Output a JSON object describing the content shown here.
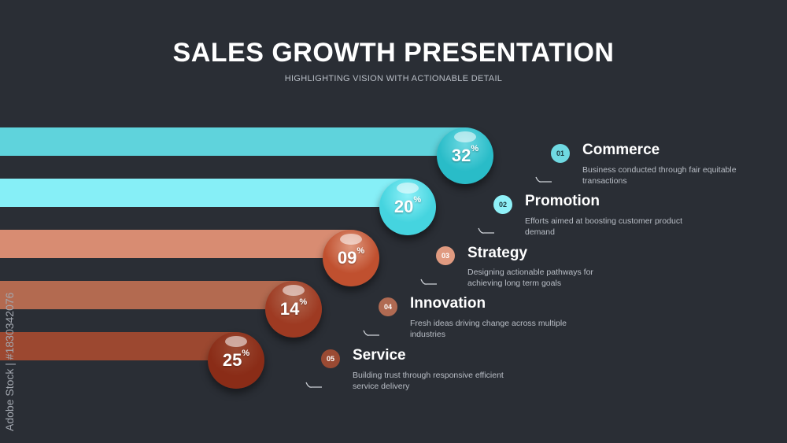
{
  "header": {
    "title": "SALES GROWTH PRESENTATION",
    "subtitle": "HIGHLIGHTING VISION WITH ACTIONABLE DETAIL"
  },
  "items": [
    {
      "number": "01",
      "value": "32",
      "unit": "%",
      "title": "Commerce",
      "description": "Business conducted through fair equitable transactions",
      "bar_color": "#5fd3dc",
      "ball_color": "#29bcc8",
      "badge_color": "#6fd9e2"
    },
    {
      "number": "02",
      "value": "20",
      "unit": "%",
      "title": "Promotion",
      "description": "Efforts aimed at boosting customer product demand",
      "bar_color": "#86eff7",
      "ball_color": "#45d4df",
      "badge_color": "#8ff1f8"
    },
    {
      "number": "03",
      "value": "09",
      "unit": "%",
      "title": "Strategy",
      "description": "Designing actionable pathways for achieving long term goals",
      "bar_color": "#d88c72",
      "ball_color": "#c0502f",
      "badge_color": "#e09a80"
    },
    {
      "number": "04",
      "value": "14",
      "unit": "%",
      "title": "Innovation",
      "description": "Fresh ideas driving change across multiple industries",
      "bar_color": "#b36a50",
      "ball_color": "#9e3a22",
      "badge_color": "#b06a52"
    },
    {
      "number": "05",
      "value": "25",
      "unit": "%",
      "title": "Service",
      "description": "Building trust through responsive efficient service delivery",
      "bar_color": "#9c4830",
      "ball_color": "#8a2c17",
      "badge_color": "#9a4a33"
    }
  ],
  "watermark": "Adobe Stock | #1830342076"
}
